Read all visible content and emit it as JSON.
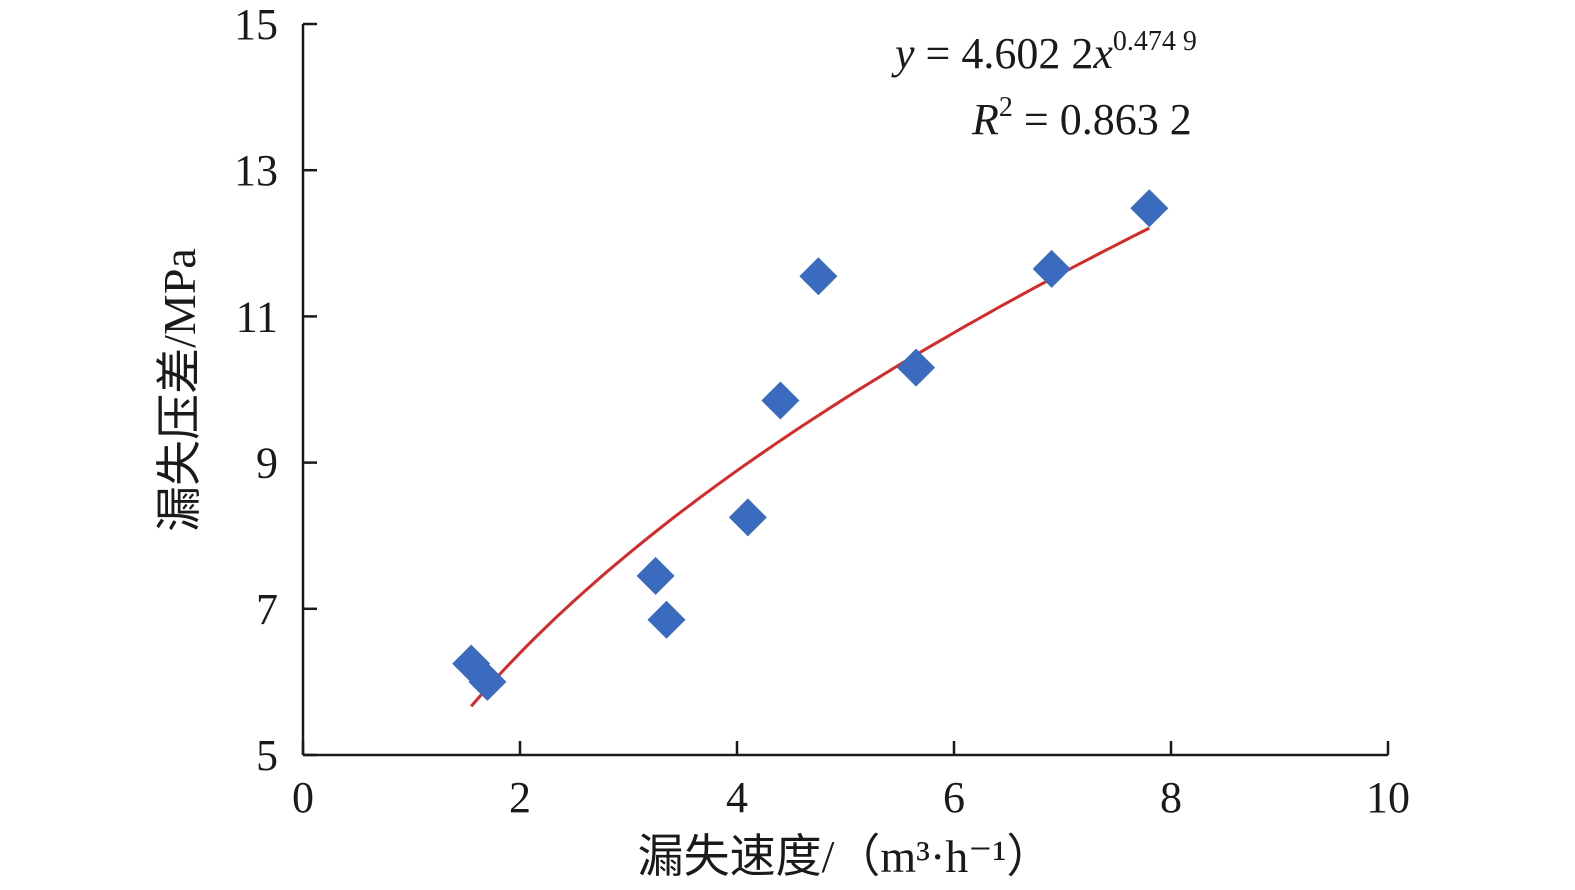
{
  "chart_data": {
    "type": "scatter",
    "title": "",
    "xlabel": "漏失速度/（m³·h⁻¹）",
    "ylabel": "漏失压差/MPa",
    "xlim": [
      0,
      10
    ],
    "ylim": [
      5,
      15
    ],
    "x_ticks": [
      "0",
      "2",
      "4",
      "6",
      "8",
      "10"
    ],
    "y_ticks": [
      "5",
      "7",
      "9",
      "11",
      "13",
      "15"
    ],
    "grid": false,
    "series": [
      {
        "name": "",
        "color": "#3a6bbf",
        "marker": "diamond",
        "points": [
          {
            "x": 1.55,
            "y": 6.25
          },
          {
            "x": 1.7,
            "y": 6.0
          },
          {
            "x": 3.25,
            "y": 7.45
          },
          {
            "x": 3.35,
            "y": 6.85
          },
          {
            "x": 4.1,
            "y": 8.25
          },
          {
            "x": 4.4,
            "y": 9.85
          },
          {
            "x": 4.75,
            "y": 11.55
          },
          {
            "x": 5.65,
            "y": 10.3
          },
          {
            "x": 6.9,
            "y": 11.65
          },
          {
            "x": 7.8,
            "y": 12.48
          }
        ]
      }
    ],
    "trendline": {
      "type": "power",
      "coefficient": 4.6022,
      "exponent": 0.4749,
      "x_range": [
        1.55,
        7.8
      ],
      "color": "#d42a2a"
    },
    "annotations": {
      "equation_y": "y",
      "equation_mid": " = 4.602 2",
      "equation_x": "x",
      "equation_exp": "0.474 9",
      "r2_label": "R",
      "r2_exp": "2",
      "r2_value": " = 0.863 2"
    }
  }
}
